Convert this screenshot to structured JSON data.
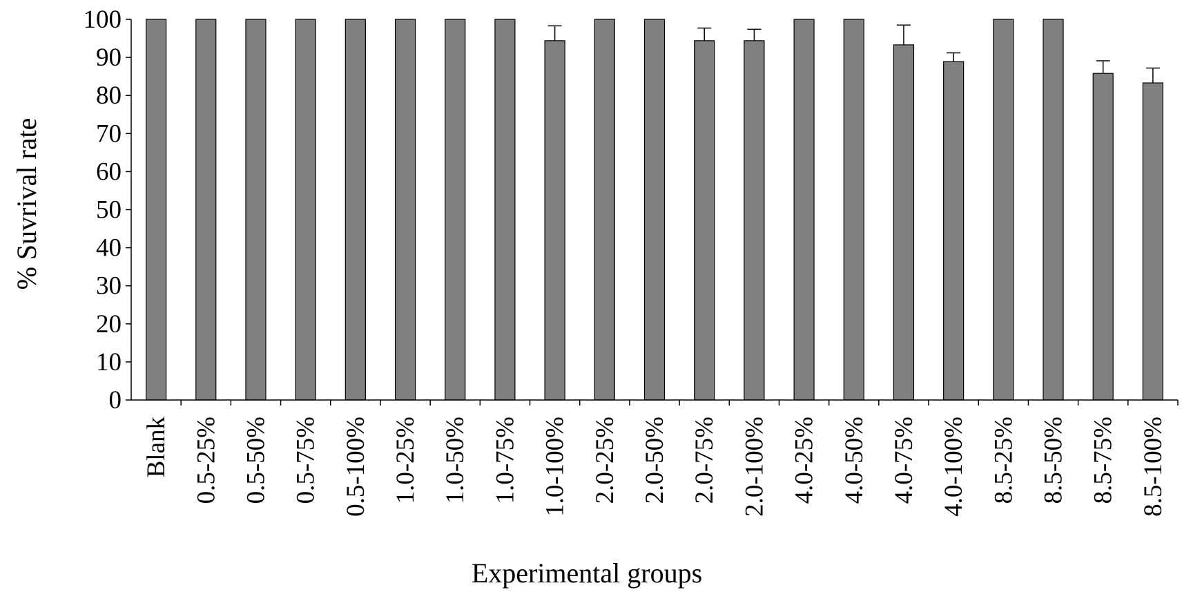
{
  "chart_data": {
    "type": "bar",
    "title": "",
    "xlabel": "Experimental groups",
    "ylabel": "% Suvrival rate",
    "ylim": [
      0,
      100
    ],
    "yticks": [
      0,
      10,
      20,
      30,
      40,
      50,
      60,
      70,
      80,
      90,
      100
    ],
    "grid": false,
    "legend": "none",
    "bar_color": "#808080",
    "categories": [
      "Blank",
      "0.5-25%",
      "0.5-50%",
      "0.5-75%",
      "0.5-100%",
      "1.0-25%",
      "1.0-50%",
      "1.0-75%",
      "1.0-100%",
      "2.0-25%",
      "2.0-50%",
      "2.0-75%",
      "2.0-100%",
      "4.0-25%",
      "4.0-50%",
      "4.0-75%",
      "4.0-100%",
      "8.5-25%",
      "8.5-50%",
      "8.5-75%",
      "8.5-100%"
    ],
    "values": [
      100,
      100,
      100,
      100,
      100,
      100,
      100,
      100,
      94.4,
      100,
      100,
      94.4,
      94.4,
      100,
      100,
      93.3,
      88.9,
      100,
      100,
      85.8,
      83.3
    ],
    "errors": [
      0,
      0,
      0,
      0,
      0,
      0,
      0,
      0,
      3.9,
      0,
      0,
      3.3,
      3.0,
      0,
      0,
      5.2,
      2.3,
      0,
      0,
      3.3,
      3.9
    ]
  }
}
